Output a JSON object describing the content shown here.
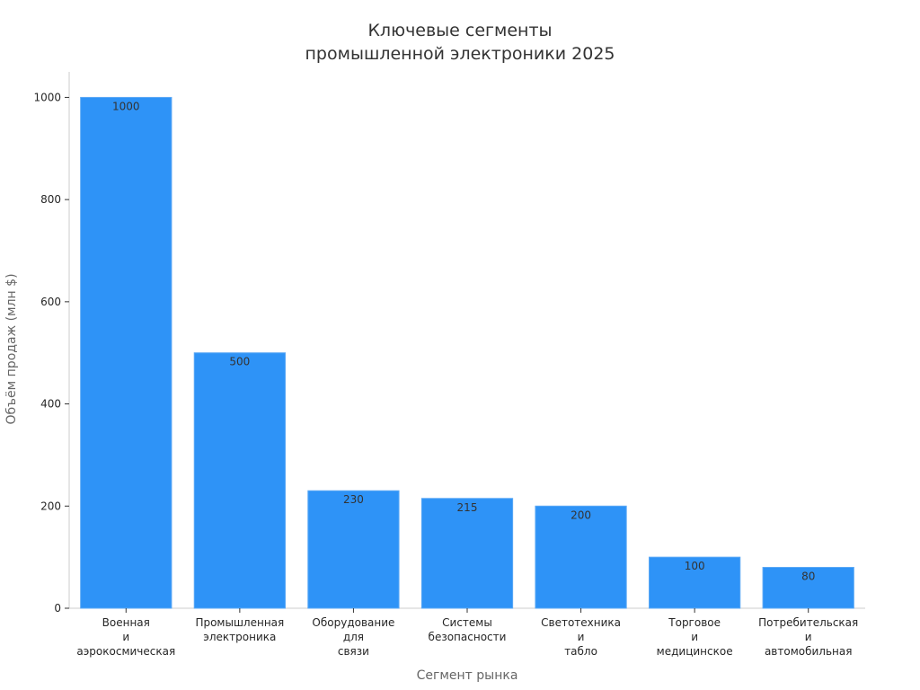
{
  "chart_data": {
    "type": "bar",
    "title_lines": [
      "Ключевые сегменты",
      "промышленной электроники 2025"
    ],
    "xlabel": "Сегмент рынка",
    "ylabel": "Объём продаж (млн $)",
    "categories": [
      [
        "Военная",
        "и",
        "аэрокосмическая"
      ],
      [
        "Промышленная",
        "электроника"
      ],
      [
        "Оборудование",
        "для",
        "связи"
      ],
      [
        "Системы",
        "безопасности"
      ],
      [
        "Светотехника",
        "и",
        "табло"
      ],
      [
        "Торговое",
        "и",
        "медицинское"
      ],
      [
        "Потребительская",
        "и",
        "автомобильная"
      ]
    ],
    "values": [
      1000,
      500,
      230,
      215,
      200,
      100,
      80
    ],
    "data_labels": [
      "1000",
      "500",
      "230",
      "215",
      "200",
      "100",
      "80"
    ],
    "ylim": [
      0,
      1050
    ],
    "yticks": [
      0,
      200,
      400,
      600,
      800,
      1000
    ],
    "ytick_labels": [
      "0",
      "200",
      "400",
      "600",
      "800",
      "1000"
    ],
    "grid": false,
    "bar_color": "#2E93F7",
    "axis_color": "#cccccc"
  }
}
